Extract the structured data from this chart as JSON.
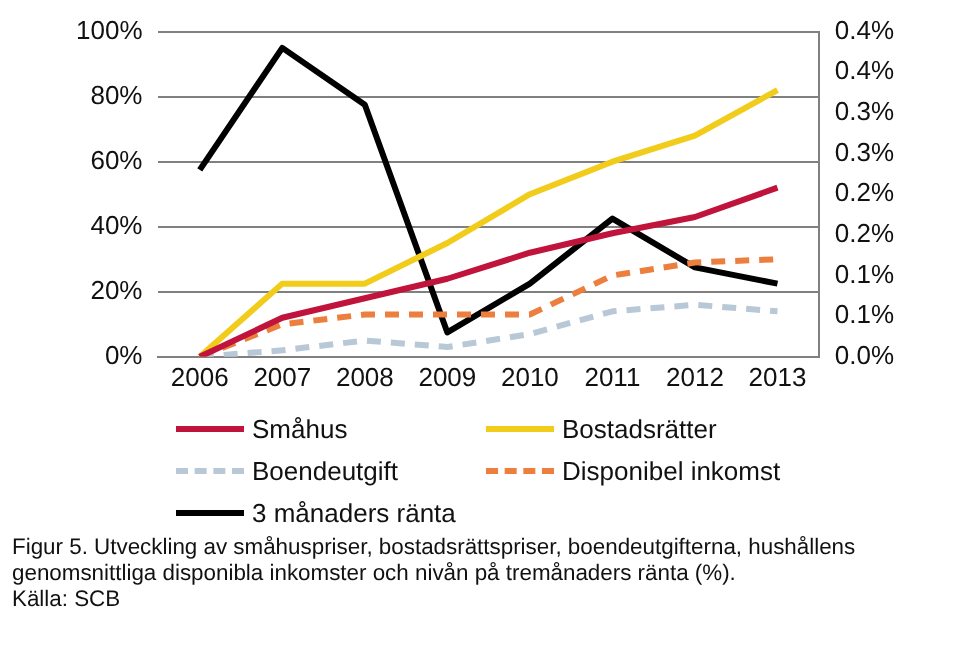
{
  "chart_data": {
    "type": "line",
    "categories": [
      "2006",
      "2007",
      "2008",
      "2009",
      "2010",
      "2011",
      "2012",
      "2013"
    ],
    "series": [
      {
        "name": "Småhus",
        "color": "#c0143c",
        "values": [
          0,
          12,
          18,
          24,
          32,
          38,
          43,
          52
        ]
      },
      {
        "name": "Bostadsrätter",
        "color": "#f2cc1a",
        "values": [
          0,
          22.5,
          22.5,
          35,
          50,
          60,
          68,
          82
        ]
      },
      {
        "name": "Boendeutgift",
        "color": "#b8c8d6",
        "line_style": "dashed",
        "values": [
          0,
          2,
          5,
          3,
          7,
          14,
          16,
          14
        ]
      },
      {
        "name": "Disponibel inkomst",
        "color": "#ec7f3e",
        "line_style": "dashed",
        "values": [
          0,
          10,
          13,
          13,
          13,
          25,
          29,
          30
        ]
      },
      {
        "name": "3 månaders ränta",
        "color": "#000000",
        "axis": "y2",
        "values": [
          0.23,
          0.38,
          0.31,
          0.03,
          0.09,
          0.17,
          0.11,
          0.09
        ]
      }
    ],
    "ylim": [
      0,
      100
    ],
    "yticks": [
      {
        "value": 0,
        "label": "0%"
      },
      {
        "value": 20,
        "label": "20%"
      },
      {
        "value": 40,
        "label": "40%"
      },
      {
        "value": 60,
        "label": "60%"
      },
      {
        "value": 80,
        "label": "80%"
      },
      {
        "value": 100,
        "label": "100%"
      }
    ],
    "y2lim": [
      0,
      0.4
    ],
    "y2ticks": [
      {
        "value": 0,
        "label": "0.0%"
      },
      {
        "value": 0.05,
        "label": "0.1%"
      },
      {
        "value": 0.1,
        "label": "0.1%"
      },
      {
        "value": 0.15,
        "label": "0.2%"
      },
      {
        "value": 0.2,
        "label": "0.2%"
      },
      {
        "value": 0.25,
        "label": "0.3%"
      },
      {
        "value": 0.3,
        "label": "0.3%"
      },
      {
        "value": 0.35,
        "label": "0.4%"
      },
      {
        "value": 0.4,
        "label": "0.4%"
      }
    ],
    "grid": "y",
    "legend": "bottom",
    "marker": "none",
    "line_style": "solid",
    "annotations": [
      "Figur 5. Utveckling av småhuspriser, bostadsrättspriser, boendeutgifterna, hushållens genomsnittliga disponibla inkomster och nivån på tremånaders ränta (%).",
      "Källa: SCB"
    ]
  }
}
